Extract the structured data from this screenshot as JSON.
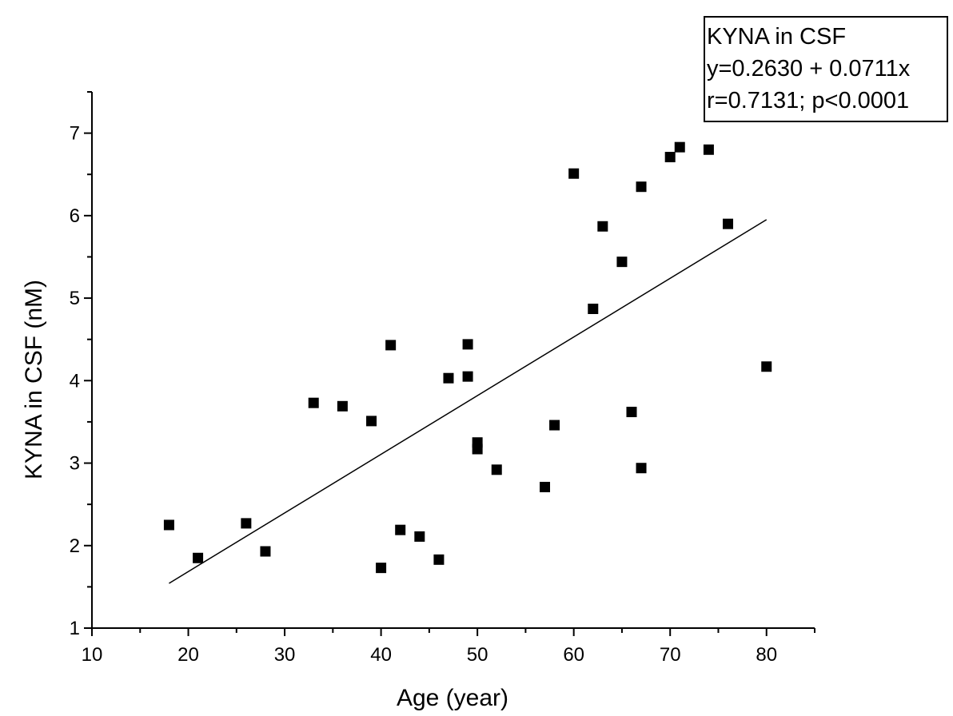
{
  "chart_data": {
    "type": "scatter",
    "title": "",
    "xlabel": "Age (year)",
    "ylabel": "KYNA in CSF (nM)",
    "xlim": [
      10,
      85
    ],
    "ylim": [
      1,
      7.5
    ],
    "x_ticks": [
      10,
      20,
      30,
      40,
      50,
      60,
      70,
      80
    ],
    "y_ticks": [
      1,
      2,
      3,
      4,
      5,
      6,
      7
    ],
    "grid": false,
    "legend_placement": "top-right",
    "annotation": [
      "KYNA in CSF",
      "y=0.2630 + 0.0711x",
      "r=0.7131; p<0.0001"
    ],
    "series": [
      {
        "marker": "square",
        "color": "#000000",
        "points": [
          [
            18,
            2.25
          ],
          [
            21,
            1.85
          ],
          [
            26,
            2.27
          ],
          [
            28,
            1.93
          ],
          [
            33,
            3.73
          ],
          [
            36,
            3.69
          ],
          [
            39,
            3.51
          ],
          [
            40,
            1.73
          ],
          [
            41,
            4.43
          ],
          [
            42,
            2.19
          ],
          [
            44,
            2.11
          ],
          [
            46,
            1.83
          ],
          [
            47,
            4.03
          ],
          [
            49,
            4.44
          ],
          [
            49,
            4.05
          ],
          [
            50,
            3.25
          ],
          [
            50,
            3.17
          ],
          [
            52,
            2.92
          ],
          [
            57,
            2.71
          ],
          [
            58,
            3.46
          ],
          [
            60,
            6.51
          ],
          [
            62,
            4.87
          ],
          [
            63,
            5.87
          ],
          [
            65,
            5.44
          ],
          [
            66,
            3.62
          ],
          [
            67,
            6.35
          ],
          [
            67,
            2.94
          ],
          [
            70,
            6.71
          ],
          [
            71,
            6.83
          ],
          [
            74,
            6.8
          ],
          [
            76,
            5.9
          ],
          [
            80,
            4.17
          ]
        ]
      }
    ],
    "fit_line": {
      "intercept": 0.263,
      "slope": 0.0711,
      "x_range": [
        18,
        80
      ],
      "color": "#000000"
    }
  }
}
